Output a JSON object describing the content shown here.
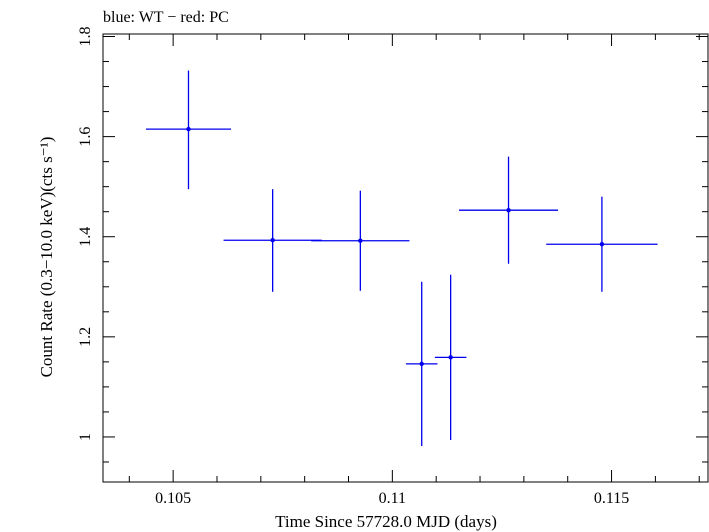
{
  "chart_data": {
    "type": "scatter",
    "title": "blue: WT − red: PC",
    "xlabel": "Time Since 57728.0 MJD (days)",
    "ylabel": "Count Rate (0.3−10.0 keV)(cts s⁻¹)",
    "xlim": [
      0.1034,
      0.1172
    ],
    "ylim": [
      0.91,
      1.805
    ],
    "x_ticks": [
      0.105,
      0.11,
      0.115
    ],
    "x_tick_labels": [
      "0.105",
      "0.11",
      "0.115"
    ],
    "y_ticks": [
      1.0,
      1.2,
      1.4,
      1.6,
      1.8
    ],
    "y_tick_labels": [
      "1",
      "1.2",
      "1.4",
      "1.6",
      "1.8"
    ],
    "series": [
      {
        "color": "#0000ee",
        "points": [
          {
            "x": 0.10535,
            "xerr": 0.00097,
            "y": 1.615,
            "yerr_lo": 0.12,
            "yerr_hi": 0.117
          },
          {
            "x": 0.10727,
            "xerr": 0.00112,
            "y": 1.393,
            "yerr_lo": 0.103,
            "yerr_hi": 0.102
          },
          {
            "x": 0.10927,
            "xerr": 0.00112,
            "y": 1.392,
            "yerr_lo": 0.1,
            "yerr_hi": 0.1
          },
          {
            "x": 0.11067,
            "xerr": 0.00036,
            "y": 1.146,
            "yerr_lo": 0.164,
            "yerr_hi": 0.164
          },
          {
            "x": 0.11133,
            "xerr": 0.00036,
            "y": 1.159,
            "yerr_lo": 0.165,
            "yerr_hi": 0.165
          },
          {
            "x": 0.11265,
            "xerr": 0.00113,
            "y": 1.453,
            "yerr_lo": 0.107,
            "yerr_hi": 0.107
          },
          {
            "x": 0.11478,
            "xerr": 0.00127,
            "y": 1.385,
            "yerr_lo": 0.095,
            "yerr_hi": 0.095
          }
        ]
      }
    ]
  }
}
